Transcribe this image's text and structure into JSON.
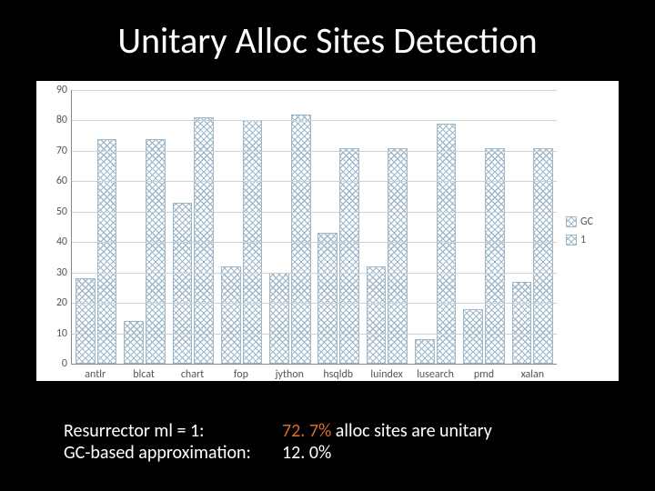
{
  "title": "Unitary Alloc Sites Detection",
  "chart": {
    "type": "bar",
    "background_color": "#ffffff",
    "grid_color": "#d0d0d0",
    "axis_color": "#888888",
    "label_color": "#555555",
    "label_fontsize": 12,
    "ylim": [
      0,
      90
    ],
    "ytick_step": 10,
    "yticks": [
      0,
      10,
      20,
      30,
      40,
      50,
      60,
      70,
      80,
      90
    ],
    "categories": [
      "antlr",
      "blcat",
      "chart",
      "fop",
      "jython",
      "hsqldb",
      "luindex",
      "lusearch",
      "pmd",
      "xalan"
    ],
    "series": [
      {
        "name": "GC",
        "label": "GC",
        "color": "#9fb8c9",
        "pattern": "diamond",
        "values": [
          28,
          14,
          53,
          32,
          30,
          43,
          32,
          8,
          18,
          27
        ]
      },
      {
        "name": "1",
        "label": "1",
        "color": "#9fb8c9",
        "pattern": "diamond",
        "values": [
          74,
          74,
          81,
          80,
          82,
          71,
          71,
          79,
          71,
          71
        ]
      }
    ],
    "legend_position": "right",
    "bar_width": 0.8
  },
  "footer": {
    "rows": [
      {
        "left": "Resurrector ml = 1:",
        "pct": "72. 7%",
        "right_suffix": " alloc sites are unitary",
        "pct_highlight": true
      },
      {
        "left": "GC-based approximation:",
        "pct": "12. 0%",
        "right_suffix": "",
        "pct_highlight": false
      }
    ]
  },
  "colors": {
    "slide_bg": "#000000",
    "title_text": "#ffffff",
    "footer_text": "#ffffff",
    "highlight": "#d96c2a"
  },
  "fonts": {
    "title_fontsize": 40,
    "footer_fontsize": 20
  }
}
